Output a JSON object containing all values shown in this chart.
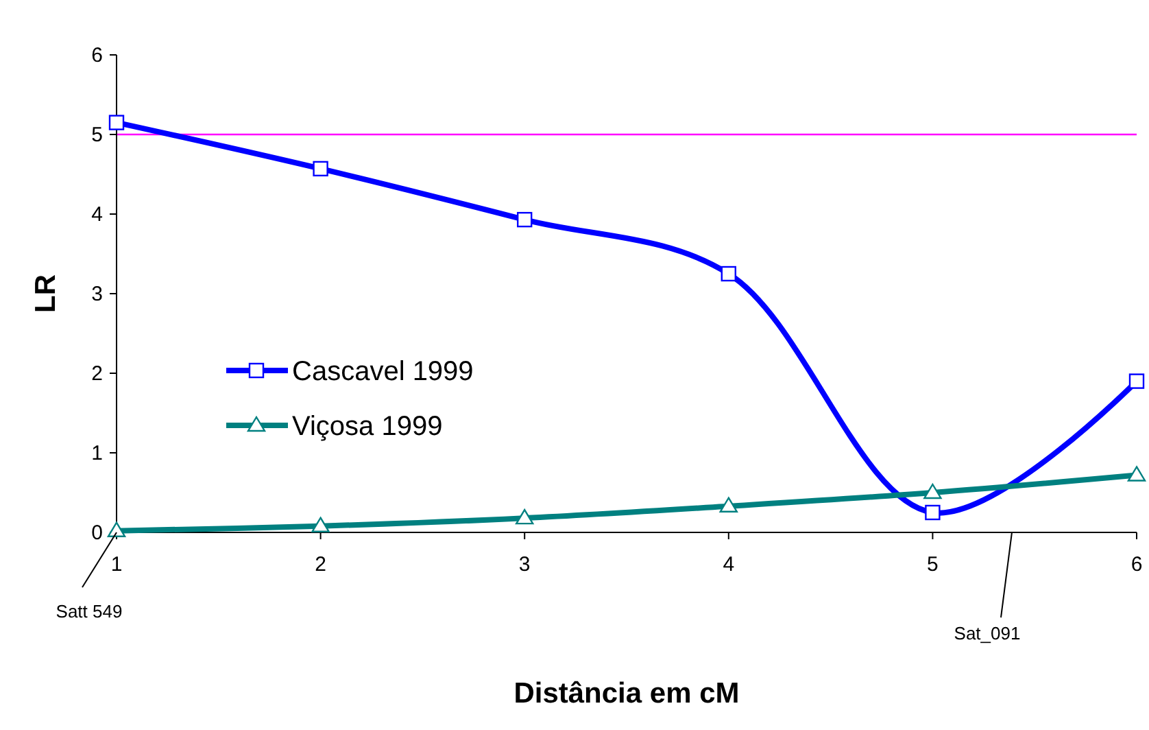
{
  "chart_data": {
    "type": "line",
    "xlabel": "Distância em cM",
    "ylabel": "LR",
    "x": [
      1,
      2,
      3,
      4,
      5,
      6
    ],
    "series": [
      {
        "name": "Cascavel 1999",
        "color": "#0000ff",
        "marker": "square",
        "values": [
          5.15,
          4.57,
          3.93,
          3.25,
          0.25,
          1.9
        ]
      },
      {
        "name": "Viçosa 1999",
        "color": "#008080",
        "marker": "triangle",
        "values": [
          0.02,
          0.08,
          0.18,
          0.33,
          0.5,
          0.72
        ]
      }
    ],
    "xlim": [
      1,
      6
    ],
    "xticks": [
      1,
      2,
      3,
      4,
      5,
      6
    ],
    "ylim": [
      0,
      6
    ],
    "yticks": [
      0,
      1,
      2,
      3,
      4,
      5,
      6
    ],
    "grid": false,
    "legend": "left",
    "line_style": "solid",
    "ref_lines": [
      {
        "axis": "y",
        "value": 5,
        "color": "#ff00ff"
      }
    ],
    "annotations": [
      {
        "text": "Satt 549",
        "x": 1,
        "y": 0
      },
      "Sat_091"
    ]
  }
}
